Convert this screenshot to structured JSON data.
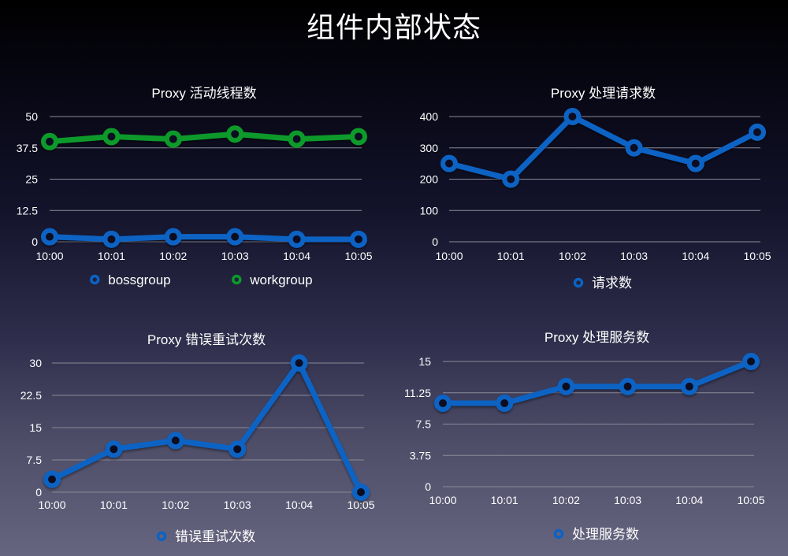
{
  "page": {
    "title": "组件内部状态"
  },
  "colors": {
    "blue": "#0a63c4",
    "green": "#0a9a2a",
    "grid": "#8a8a96",
    "text": "#ffffff"
  },
  "chart_data": [
    {
      "id": "threads",
      "type": "line",
      "title": "Proxy 活动线程数",
      "xlabel": "",
      "ylabel": "",
      "categories": [
        "10:00",
        "10:01",
        "10:02",
        "10:03",
        "10:04",
        "10:05"
      ],
      "yticks": [
        0,
        12.5,
        25,
        37.5,
        50
      ],
      "ytick_labels": [
        "0",
        "12.5",
        "25",
        "37.5",
        "50"
      ],
      "ylim": [
        0,
        50
      ],
      "grid": true,
      "legend_position": "bottom",
      "series": [
        {
          "name": "bossgroup",
          "color": "#0a63c4",
          "values": [
            2,
            1,
            2,
            2,
            1,
            1
          ]
        },
        {
          "name": "workgroup",
          "color": "#0a9a2a",
          "values": [
            40,
            42,
            41,
            43,
            41,
            42
          ]
        }
      ]
    },
    {
      "id": "requests",
      "type": "line",
      "title": "Proxy 处理请求数",
      "xlabel": "",
      "ylabel": "",
      "categories": [
        "10:00",
        "10:01",
        "10:02",
        "10:03",
        "10:04",
        "10:05"
      ],
      "yticks": [
        0,
        100,
        200,
        300,
        400
      ],
      "ytick_labels": [
        "0",
        "100",
        "200",
        "300",
        "400"
      ],
      "ylim": [
        0,
        400
      ],
      "grid": true,
      "legend_position": "bottom",
      "series": [
        {
          "name": "请求数",
          "color": "#0a63c4",
          "values": [
            250,
            200,
            400,
            300,
            250,
            350
          ]
        }
      ]
    },
    {
      "id": "retries",
      "type": "line",
      "title": "Proxy 错误重试次数",
      "xlabel": "",
      "ylabel": "",
      "categories": [
        "10:00",
        "10:01",
        "10:02",
        "10:03",
        "10:04",
        "10:05"
      ],
      "yticks": [
        0,
        7.5,
        15,
        22.5,
        30
      ],
      "ytick_labels": [
        "0",
        "7.5",
        "15",
        "22.5",
        "30"
      ],
      "ylim": [
        0,
        30
      ],
      "grid": true,
      "legend_position": "bottom",
      "series": [
        {
          "name": "错误重试次数",
          "color": "#0a63c4",
          "values": [
            3,
            10,
            12,
            10,
            30,
            0
          ]
        }
      ]
    },
    {
      "id": "services",
      "type": "line",
      "title": "Proxy 处理服务数",
      "xlabel": "",
      "ylabel": "",
      "categories": [
        "10:00",
        "10:01",
        "10:02",
        "10:03",
        "10:04",
        "10:05"
      ],
      "yticks": [
        0,
        3.75,
        7.5,
        11.25,
        15
      ],
      "ytick_labels": [
        "0",
        "3.75",
        "7.5",
        "11.25",
        "15"
      ],
      "ylim": [
        0,
        15
      ],
      "grid": true,
      "legend_position": "bottom",
      "series": [
        {
          "name": "处理服务数",
          "color": "#0a63c4",
          "values": [
            10,
            10,
            12,
            12,
            12,
            15
          ]
        }
      ]
    }
  ]
}
